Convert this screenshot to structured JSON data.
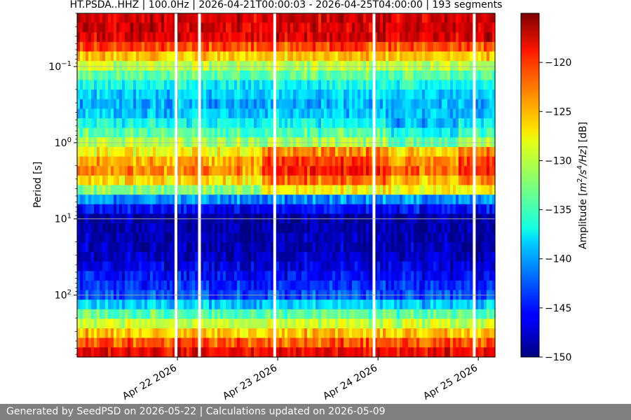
{
  "chart_data": {
    "type": "heatmap",
    "title": "HT.PSDA..HHZ | 100.0Hz | 2026-04-21T00:00:03 - 2026-04-25T04:00:00 | 193 segments",
    "xlabel": "",
    "ylabel": "Period [s]",
    "x_start": "2026-04-21T00:00:03",
    "x_end": "2026-04-25T04:00:00",
    "xlim_days": [
      "2026-04-21",
      "2026-04-25T04:00"
    ],
    "x_ticks": [
      {
        "label": "Apr 22 2026",
        "value": "2026-04-22"
      },
      {
        "label": "Apr 23 2026",
        "value": "2026-04-23"
      },
      {
        "label": "Apr 24 2026",
        "value": "2026-04-24"
      },
      {
        "label": "Apr 25 2026",
        "value": "2026-04-25"
      }
    ],
    "y_scale": "log",
    "y_inverted": true,
    "ylim": [
      0.02,
      650
    ],
    "y_ticks": [
      {
        "value": 0.1,
        "base": "10",
        "exp": "−1"
      },
      {
        "value": 1,
        "base": "10",
        "exp": "0"
      },
      {
        "value": 10,
        "base": "10",
        "exp": "1"
      },
      {
        "value": 100,
        "base": "10",
        "exp": "2"
      }
    ],
    "grid": "horizontal",
    "colorbar": {
      "label": "Amplitude [m²/s⁴/Hz] [dB]",
      "label_parts": [
        "Amplitude [",
        "m",
        "2",
        "/",
        "s",
        "4",
        "/",
        "Hz",
        "] [dB]"
      ],
      "range": [
        -150,
        -115
      ],
      "ticks": [
        -120,
        -125,
        -130,
        -135,
        -140,
        -145,
        -150
      ],
      "tick_labels": [
        "−120",
        "−125",
        "−130",
        "−135",
        "−140",
        "−145",
        "−150"
      ],
      "colormap": "jet"
    },
    "data_gaps_days": [
      0.985,
      1.22,
      1.97,
      2.96,
      3.96
    ],
    "band_levels_db": [
      {
        "period": 0.02,
        "db": -118
      },
      {
        "period": 0.04,
        "db": -118
      },
      {
        "period": 0.06,
        "db": -123
      },
      {
        "period": 0.1,
        "db": -131
      },
      {
        "period": 0.2,
        "db": -138
      },
      {
        "period": 0.35,
        "db": -140
      },
      {
        "period": 0.6,
        "db": -136
      },
      {
        "period": 1.0,
        "db": -131
      },
      {
        "period": 1.6,
        "db": -126
      },
      {
        "period": 2.5,
        "db": -124
      },
      {
        "period": 4.0,
        "db": -131
      },
      {
        "period": 6.0,
        "db": -143
      },
      {
        "period": 10,
        "db": -149
      },
      {
        "period": 30,
        "db": -148
      },
      {
        "period": 100,
        "db": -143
      },
      {
        "period": 200,
        "db": -132
      },
      {
        "period": 300,
        "db": -127
      },
      {
        "period": 500,
        "db": -120
      },
      {
        "period": 650,
        "db": -118
      }
    ]
  },
  "footer": {
    "text": "Generated by SeedPSD on 2026-05-22 | Calculations updated on 2026-05-09"
  }
}
